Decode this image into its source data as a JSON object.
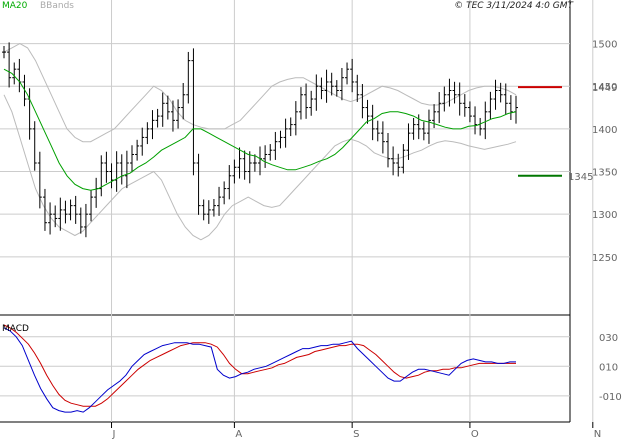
{
  "header": {
    "ma_label": "MA20",
    "bb_label": "BBands",
    "copyright": "© TEC 3/11/2024 4:0 GMT"
  },
  "macd_label": "MACD",
  "colors": {
    "ma20": "#00a000",
    "bbands": "#bbbbbb",
    "candle": "#000000",
    "resistance": "#cc0000",
    "support": "#007700",
    "macd_line": "#0000cc",
    "signal_line": "#cc0000",
    "grid": "#cccccc",
    "ma_label": "#00aa00",
    "bb_label": "#aaaaaa"
  },
  "chart_data": {
    "type": "ohlc",
    "price_axis": {
      "ticks": [
        "1500",
        "1450",
        "1400",
        "1350",
        "1300",
        "1250"
      ],
      "range": [
        1190,
        1530
      ]
    },
    "macd_axis": {
      "ticks": [
        "030",
        "010",
        "-010"
      ],
      "range": [
        -25,
        40
      ]
    },
    "month_labels": [
      {
        "label": "J",
        "bar": 21
      },
      {
        "label": "A",
        "bar": 45
      },
      {
        "label": "S",
        "bar": 68
      },
      {
        "label": "O",
        "bar": 91
      },
      {
        "label": "N",
        "bar": 115
      }
    ],
    "closes": [
      1490,
      1460,
      1470,
      1455,
      1435,
      1400,
      1360,
      1320,
      1290,
      1300,
      1295,
      1305,
      1300,
      1310,
      1300,
      1285,
      1300,
      1320,
      1330,
      1360,
      1350,
      1340,
      1360,
      1345,
      1360,
      1370,
      1380,
      1390,
      1400,
      1410,
      1415,
      1430,
      1420,
      1410,
      1425,
      1440,
      1480,
      1360,
      1310,
      1300,
      1305,
      1310,
      1320,
      1330,
      1345,
      1355,
      1365,
      1350,
      1360,
      1360,
      1365,
      1370,
      1375,
      1385,
      1390,
      1400,
      1405,
      1420,
      1440,
      1425,
      1435,
      1450,
      1445,
      1455,
      1450,
      1445,
      1460,
      1470,
      1455,
      1440,
      1425,
      1415,
      1400,
      1395,
      1385,
      1365,
      1360,
      1355,
      1375,
      1395,
      1405,
      1400,
      1395,
      1410,
      1420,
      1430,
      1440,
      1445,
      1440,
      1430,
      1425,
      1415,
      1405,
      1400,
      1420,
      1435,
      1445,
      1440,
      1430,
      1420,
      1425
    ],
    "ma20": [
      1470,
      1465,
      1455,
      1440,
      1420,
      1400,
      1380,
      1360,
      1345,
      1335,
      1330,
      1328,
      1330,
      1335,
      1340,
      1345,
      1348,
      1355,
      1360,
      1367,
      1375,
      1380,
      1385,
      1390,
      1400,
      1400,
      1395,
      1390,
      1385,
      1380,
      1375,
      1370,
      1368,
      1362,
      1358,
      1355,
      1352,
      1352,
      1355,
      1358,
      1362,
      1365,
      1370,
      1378,
      1388,
      1398,
      1408,
      1412,
      1418,
      1420,
      1420,
      1418,
      1415,
      1410,
      1408,
      1405,
      1402,
      1400,
      1400,
      1403,
      1404,
      1408,
      1412,
      1414,
      1418,
      1420
    ],
    "bb_upper": [
      1490,
      1495,
      1500,
      1495,
      1480,
      1460,
      1440,
      1420,
      1400,
      1390,
      1385,
      1385,
      1390,
      1395,
      1400,
      1410,
      1420,
      1430,
      1440,
      1450,
      1445,
      1435,
      1420,
      1410,
      1405,
      1402,
      1400,
      1400,
      1400,
      1405,
      1410,
      1420,
      1430,
      1440,
      1450,
      1455,
      1458,
      1460,
      1460,
      1455,
      1450,
      1445,
      1440,
      1435,
      1432,
      1435,
      1440,
      1445,
      1450,
      1448,
      1445,
      1440,
      1435,
      1430,
      1428,
      1428,
      1430,
      1435,
      1440,
      1445,
      1448,
      1450,
      1450,
      1448,
      1445,
      1440
    ],
    "bb_lower": [
      1440,
      1420,
      1390,
      1360,
      1330,
      1310,
      1295,
      1285,
      1280,
      1275,
      1280,
      1290,
      1300,
      1310,
      1320,
      1330,
      1335,
      1340,
      1345,
      1350,
      1340,
      1320,
      1300,
      1285,
      1275,
      1270,
      1275,
      1285,
      1300,
      1310,
      1315,
      1320,
      1315,
      1310,
      1308,
      1310,
      1320,
      1330,
      1340,
      1350,
      1360,
      1370,
      1380,
      1385,
      1388,
      1385,
      1380,
      1372,
      1368,
      1365,
      1365,
      1368,
      1372,
      1375,
      1380,
      1384,
      1386,
      1385,
      1383,
      1380,
      1378,
      1376,
      1378,
      1380,
      1382,
      1385
    ],
    "resistance": {
      "value": 1449,
      "label": "1449"
    },
    "support": {
      "value": 1345,
      "label": "1345"
    },
    "macd": [
      36,
      34,
      30,
      24,
      14,
      4,
      -5,
      -12,
      -18,
      -20,
      -21,
      -21,
      -20,
      -21,
      -18,
      -14,
      -10,
      -6,
      -3,
      0,
      4,
      10,
      14,
      18,
      20,
      22,
      24,
      25,
      26,
      26,
      26,
      25,
      25,
      24,
      23,
      8,
      4,
      2,
      3,
      5,
      6,
      8,
      9,
      10,
      12,
      14,
      16,
      18,
      20,
      22,
      22,
      23,
      24,
      24,
      25,
      25,
      26,
      27,
      22,
      18,
      14,
      10,
      6,
      2,
      0,
      0,
      3,
      6,
      8,
      8,
      7,
      6,
      5,
      4,
      8,
      12,
      14,
      15,
      14,
      13,
      13,
      12,
      12,
      13,
      13
    ],
    "signal": [
      38,
      36,
      33,
      29,
      25,
      19,
      12,
      4,
      -3,
      -9,
      -13,
      -15,
      -16,
      -17,
      -17,
      -17,
      -15,
      -12,
      -8,
      -4,
      0,
      4,
      8,
      11,
      14,
      16,
      18,
      20,
      22,
      24,
      25,
      26,
      26,
      26,
      25,
      23,
      18,
      12,
      8,
      5,
      5,
      6,
      7,
      8,
      9,
      11,
      12,
      14,
      16,
      17,
      18,
      20,
      21,
      22,
      23,
      24,
      24,
      25,
      25,
      24,
      21,
      18,
      14,
      10,
      6,
      3,
      2,
      3,
      4,
      6,
      7,
      7,
      8,
      8,
      9,
      9,
      10,
      11,
      12,
      12,
      12,
      12,
      12,
      12,
      12
    ]
  }
}
